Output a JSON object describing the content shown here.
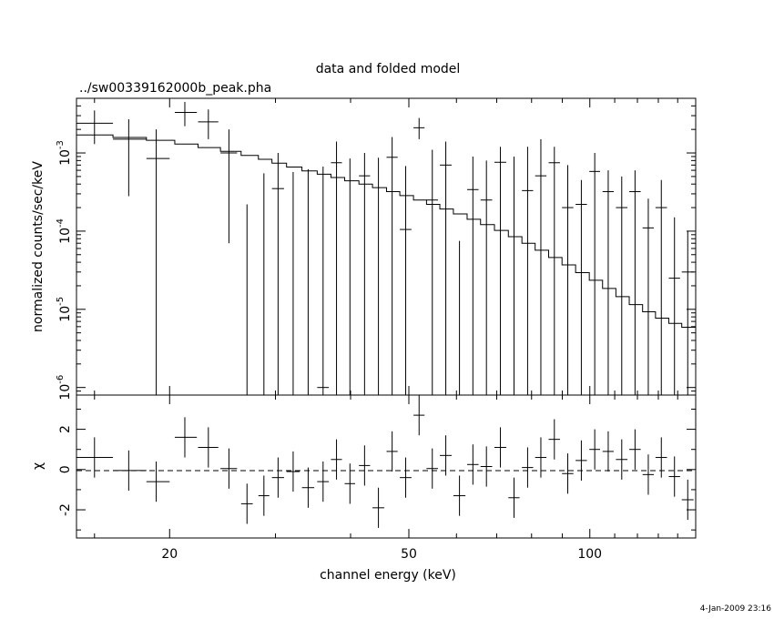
{
  "chart_data": [
    {
      "type": "scatter",
      "title": "data and folded model",
      "subtitle": "../sw00339162000b_peak.pha",
      "ylabel": "normalized counts/sec/keV",
      "xscale": "log",
      "yscale": "log",
      "xlim": [
        14,
        150
      ],
      "ylim": [
        8e-07,
        0.005
      ],
      "y_tick_labels": [
        {
          "value": 1e-06,
          "mantissa": "10",
          "exp": "-6"
        },
        {
          "value": 1e-05,
          "mantissa": "10",
          "exp": "-5"
        },
        {
          "value": 0.0001,
          "mantissa": "10",
          "exp": "-4"
        },
        {
          "value": 0.001,
          "mantissa": "10",
          "exp": "-3"
        }
      ],
      "series": [
        {
          "role": "data",
          "points": [
            {
              "x": 15.0,
              "xlo": 14.0,
              "xhi": 16.1,
              "y": 0.0024,
              "ylo": 0.0013,
              "yhi": 0.0035
            },
            {
              "x": 17.1,
              "xlo": 16.1,
              "xhi": 18.3,
              "y": 0.0015,
              "ylo": 0.00028,
              "yhi": 0.0027
            },
            {
              "x": 19.0,
              "xlo": 18.3,
              "xhi": 20.0,
              "y": 0.00085,
              "ylo": 8e-07,
              "yhi": 0.002
            },
            {
              "x": 21.2,
              "xlo": 20.4,
              "xhi": 22.2,
              "y": 0.0033,
              "ylo": 0.0022,
              "yhi": 0.0045
            },
            {
              "x": 23.2,
              "xlo": 22.3,
              "xhi": 24.1,
              "y": 0.0025,
              "ylo": 0.0015,
              "yhi": 0.0036
            },
            {
              "x": 25.1,
              "xlo": 24.3,
              "xhi": 25.9,
              "y": 0.001,
              "ylo": 7e-05,
              "yhi": 0.002
            },
            {
              "x": 26.9,
              "xlo": 26.3,
              "xhi": 27.5,
              "y": 8e-07,
              "ylo": 8e-07,
              "yhi": 0.00022
            },
            {
              "x": 28.7,
              "xlo": 28.1,
              "xhi": 29.3,
              "y": 8e-07,
              "ylo": 8e-07,
              "yhi": 0.00055
            },
            {
              "x": 30.3,
              "xlo": 29.6,
              "xhi": 31.0,
              "y": 0.00035,
              "ylo": 8e-07,
              "yhi": 0.001
            },
            {
              "x": 32.1,
              "xlo": 31.3,
              "xhi": 32.9,
              "y": 8e-07,
              "ylo": 8e-07,
              "yhi": 0.00057
            },
            {
              "x": 34.0,
              "xlo": 33.2,
              "xhi": 34.8,
              "y": 8e-07,
              "ylo": 8e-07,
              "yhi": 0.00062
            },
            {
              "x": 36.0,
              "xlo": 35.2,
              "xhi": 36.8,
              "y": 1e-06,
              "ylo": 8e-07,
              "yhi": 0.00067
            },
            {
              "x": 37.9,
              "xlo": 37.1,
              "xhi": 38.7,
              "y": 0.00075,
              "ylo": 8e-07,
              "yhi": 0.0014
            },
            {
              "x": 39.9,
              "xlo": 39.1,
              "xhi": 40.7,
              "y": 8e-07,
              "ylo": 8e-07,
              "yhi": 0.00085
            },
            {
              "x": 42.2,
              "xlo": 41.3,
              "xhi": 43.1,
              "y": 0.00051,
              "ylo": 8e-07,
              "yhi": 0.001
            },
            {
              "x": 44.5,
              "xlo": 43.5,
              "xhi": 45.5,
              "y": 8e-07,
              "ylo": 8e-07,
              "yhi": 0.00087
            },
            {
              "x": 46.9,
              "xlo": 45.9,
              "xhi": 47.9,
              "y": 0.00088,
              "ylo": 8e-07,
              "yhi": 0.0016
            },
            {
              "x": 49.4,
              "xlo": 48.3,
              "xhi": 50.5,
              "y": 0.000105,
              "ylo": 8e-07,
              "yhi": 0.00068
            },
            {
              "x": 52.0,
              "xlo": 50.9,
              "xhi": 53.1,
              "y": 0.0021,
              "ylo": 0.0015,
              "yhi": 0.0028
            },
            {
              "x": 54.7,
              "xlo": 53.5,
              "xhi": 55.9,
              "y": 0.00025,
              "ylo": 8e-07,
              "yhi": 0.0011
            },
            {
              "x": 57.6,
              "xlo": 56.3,
              "xhi": 58.9,
              "y": 0.0007,
              "ylo": 8e-07,
              "yhi": 0.0014
            },
            {
              "x": 60.7,
              "xlo": 59.3,
              "xhi": 62.1,
              "y": 8e-07,
              "ylo": 8e-07,
              "yhi": 7.5e-05
            },
            {
              "x": 63.9,
              "xlo": 62.5,
              "xhi": 65.3,
              "y": 0.00034,
              "ylo": 8e-07,
              "yhi": 0.0009
            },
            {
              "x": 67.3,
              "xlo": 65.8,
              "xhi": 68.8,
              "y": 0.00025,
              "ylo": 8e-07,
              "yhi": 0.0008
            },
            {
              "x": 71.0,
              "xlo": 69.4,
              "xhi": 72.6,
              "y": 0.00076,
              "ylo": 8e-07,
              "yhi": 0.0012
            },
            {
              "x": 74.8,
              "xlo": 73.2,
              "xhi": 76.4,
              "y": 8e-07,
              "ylo": 8e-07,
              "yhi": 0.0009
            },
            {
              "x": 78.8,
              "xlo": 77.1,
              "xhi": 80.5,
              "y": 0.00033,
              "ylo": 8e-07,
              "yhi": 0.0012
            },
            {
              "x": 82.9,
              "xlo": 81.1,
              "xhi": 84.7,
              "y": 0.00051,
              "ylo": 8e-07,
              "yhi": 0.0015
            },
            {
              "x": 87.3,
              "xlo": 85.4,
              "xhi": 89.2,
              "y": 0.00075,
              "ylo": 8e-07,
              "yhi": 0.0012
            },
            {
              "x": 91.9,
              "xlo": 89.9,
              "xhi": 93.9,
              "y": 0.0002,
              "ylo": 8e-07,
              "yhi": 0.0007
            },
            {
              "x": 96.8,
              "xlo": 94.7,
              "xhi": 98.9,
              "y": 0.00022,
              "ylo": 8e-07,
              "yhi": 0.00045
            },
            {
              "x": 101.9,
              "xlo": 99.8,
              "xhi": 104.0,
              "y": 0.00058,
              "ylo": 8e-07,
              "yhi": 0.001
            },
            {
              "x": 107.3,
              "xlo": 105.0,
              "xhi": 109.6,
              "y": 0.00032,
              "ylo": 8e-07,
              "yhi": 0.0006
            },
            {
              "x": 113.0,
              "xlo": 110.5,
              "xhi": 115.5,
              "y": 0.0002,
              "ylo": 8e-07,
              "yhi": 0.0005
            },
            {
              "x": 118.9,
              "xlo": 116.3,
              "xhi": 121.5,
              "y": 0.00032,
              "ylo": 8e-07,
              "yhi": 0.0006
            },
            {
              "x": 125.1,
              "xlo": 122.4,
              "xhi": 127.8,
              "y": 0.00011,
              "ylo": 8e-07,
              "yhi": 0.00026
            },
            {
              "x": 131.5,
              "xlo": 128.6,
              "xhi": 134.4,
              "y": 0.0002,
              "ylo": 8e-07,
              "yhi": 0.00045
            },
            {
              "x": 138.3,
              "xlo": 135.3,
              "xhi": 141.3,
              "y": 2.5e-05,
              "ylo": 8e-07,
              "yhi": 0.00015
            },
            {
              "x": 145.5,
              "xlo": 142.2,
              "xhi": 148.8,
              "y": 3e-05,
              "ylo": 8e-07,
              "yhi": 0.0001
            }
          ]
        },
        {
          "role": "model",
          "x": [
            14.0,
            16.1,
            18.3,
            20.4,
            22.3,
            24.3,
            26.3,
            28.1,
            29.6,
            31.3,
            33.2,
            35.2,
            37.1,
            39.1,
            41.3,
            43.5,
            45.9,
            48.3,
            50.9,
            53.5,
            56.3,
            59.3,
            62.5,
            65.8,
            69.4,
            73.2,
            77.1,
            81.1,
            85.4,
            89.9,
            94.7,
            99.8,
            105.0,
            110.5,
            116.3,
            122.4,
            128.6,
            135.3,
            142.2,
            148.8
          ],
          "y": [
            0.0017,
            0.00158,
            0.00145,
            0.0013,
            0.00117,
            0.00105,
            0.00093,
            0.00083,
            0.00074,
            0.00066,
            0.00059,
            0.000535,
            0.000485,
            0.00044,
            0.0004,
            0.00036,
            0.00032,
            0.000285,
            0.00025,
            0.00022,
            0.000192,
            0.000166,
            0.000142,
            0.000121,
            0.000102,
            8.5e-05,
            7e-05,
            5.7e-05,
            4.6e-05,
            3.7e-05,
            2.95e-05,
            2.35e-05,
            1.85e-05,
            1.45e-05,
            1.15e-05,
            9.3e-06,
            7.7e-06,
            6.6e-06,
            5.9e-06,
            5.9e-06
          ]
        }
      ]
    },
    {
      "type": "scatter",
      "ylabel": "χ",
      "xlabel": "channel energy (keV)",
      "xscale": "log",
      "xlim": [
        14,
        150
      ],
      "ylim": [
        -3.4,
        3.7
      ],
      "x_tick_labels": [
        {
          "value": 20,
          "label": "20"
        },
        {
          "value": 50,
          "label": "50"
        },
        {
          "value": 100,
          "label": "100"
        }
      ],
      "y_tick_labels": [
        {
          "value": -2,
          "label": "-2"
        },
        {
          "value": 0,
          "label": "0"
        },
        {
          "value": 2,
          "label": "2"
        }
      ],
      "zero_line": {
        "y": 0,
        "style": "dashed"
      },
      "residuals": [
        0.6,
        -0.05,
        -0.6,
        1.6,
        1.1,
        0.05,
        -1.7,
        -1.3,
        -0.4,
        -0.1,
        -0.9,
        -0.6,
        0.5,
        -0.7,
        0.2,
        -1.9,
        0.9,
        -0.4,
        2.7,
        0.05,
        0.7,
        -1.3,
        0.25,
        0.15,
        1.1,
        -1.4,
        0.1,
        0.6,
        1.5,
        -0.2,
        0.45,
        1.0,
        0.9,
        0.5,
        1.0,
        -0.25,
        0.6,
        -0.35,
        -1.5
      ]
    }
  ],
  "footer": {
    "timestamp": "4-Jan-2009 23:16"
  }
}
